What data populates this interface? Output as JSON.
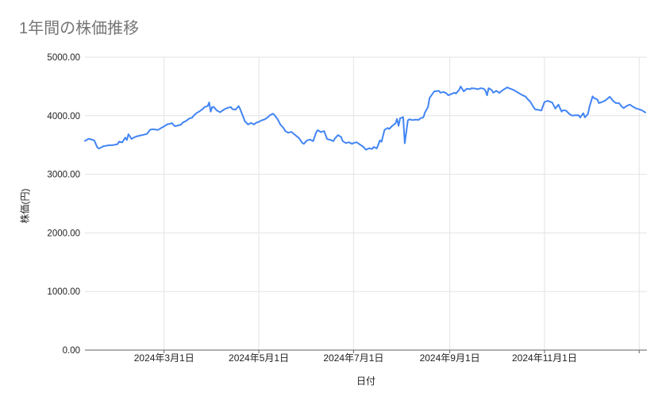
{
  "page": {
    "background": "#ffffff"
  },
  "chart_data": {
    "type": "line",
    "title": "1年間の株価推移",
    "xlabel": "日付",
    "ylabel": "株価(円)",
    "legend": "none",
    "grid": "on",
    "colors": {
      "series": "#4285f4",
      "grid": "#e3e3e3",
      "axis_line": "#616161",
      "title_text": "#757575",
      "label_text": "#222222",
      "background": "#ffffff"
    },
    "ylim": [
      0,
      5000
    ],
    "y_ticks": [
      {
        "value": 0,
        "label": "0.00"
      },
      {
        "value": 1000,
        "label": "1000.00"
      },
      {
        "value": 2000,
        "label": "2000.00"
      },
      {
        "value": 3000,
        "label": "3000.00"
      },
      {
        "value": 4000,
        "label": "4000.00"
      },
      {
        "value": 5000,
        "label": "5000.00"
      }
    ],
    "x_unit": "days_since_start",
    "start_date": "2024-01-10",
    "x_domain_days": [
      0,
      362
    ],
    "x_ticks": [
      {
        "day": 51,
        "label": "2024年3月1日"
      },
      {
        "day": 112,
        "label": "2024年5月1日"
      },
      {
        "day": 173,
        "label": "2024年7月1日"
      },
      {
        "day": 235,
        "label": "2024年9月1日"
      },
      {
        "day": 296,
        "label": "2024年11月1日"
      },
      {
        "day": 357,
        "label": ""
      }
    ],
    "points": [
      [
        0,
        3570
      ],
      [
        2,
        3600
      ],
      [
        3,
        3605
      ],
      [
        6,
        3580
      ],
      [
        8,
        3460
      ],
      [
        9,
        3440
      ],
      [
        12,
        3480
      ],
      [
        15,
        3495
      ],
      [
        18,
        3498
      ],
      [
        21,
        3515
      ],
      [
        22,
        3558
      ],
      [
        24,
        3545
      ],
      [
        26,
        3628
      ],
      [
        27,
        3585
      ],
      [
        28,
        3684
      ],
      [
        30,
        3605
      ],
      [
        31,
        3620
      ],
      [
        33,
        3645
      ],
      [
        36,
        3665
      ],
      [
        38,
        3676
      ],
      [
        40,
        3690
      ],
      [
        42,
        3762
      ],
      [
        44,
        3770
      ],
      [
        47,
        3758
      ],
      [
        49,
        3788
      ],
      [
        51,
        3818
      ],
      [
        53,
        3853
      ],
      [
        55,
        3864
      ],
      [
        56,
        3876
      ],
      [
        58,
        3820
      ],
      [
        60,
        3835
      ],
      [
        62,
        3849
      ],
      [
        63,
        3885
      ],
      [
        65,
        3908
      ],
      [
        67,
        3949
      ],
      [
        69,
        3968
      ],
      [
        70,
        4000
      ],
      [
        72,
        4048
      ],
      [
        74,
        4078
      ],
      [
        76,
        4118
      ],
      [
        77,
        4149
      ],
      [
        79,
        4163
      ],
      [
        80,
        4228
      ],
      [
        81,
        4070
      ],
      [
        82,
        4150
      ],
      [
        83,
        4149
      ],
      [
        85,
        4090
      ],
      [
        87,
        4060
      ],
      [
        88,
        4078
      ],
      [
        90,
        4113
      ],
      [
        92,
        4136
      ],
      [
        94,
        4149
      ],
      [
        95,
        4113
      ],
      [
        97,
        4104
      ],
      [
        99,
        4165
      ],
      [
        100,
        4113
      ],
      [
        101,
        4045
      ],
      [
        102,
        3977
      ],
      [
        103,
        3908
      ],
      [
        105,
        3851
      ],
      [
        107,
        3877
      ],
      [
        109,
        3851
      ],
      [
        110,
        3877
      ],
      [
        112,
        3896
      ],
      [
        114,
        3923
      ],
      [
        116,
        3941
      ],
      [
        118,
        3980
      ],
      [
        119,
        4005
      ],
      [
        121,
        4035
      ],
      [
        122,
        4015
      ],
      [
        124,
        3945
      ],
      [
        126,
        3845
      ],
      [
        128,
        3788
      ],
      [
        129,
        3740
      ],
      [
        131,
        3710
      ],
      [
        133,
        3725
      ],
      [
        135,
        3680
      ],
      [
        138,
        3615
      ],
      [
        140,
        3535
      ],
      [
        141,
        3520
      ],
      [
        143,
        3580
      ],
      [
        145,
        3593
      ],
      [
        147,
        3566
      ],
      [
        149,
        3720
      ],
      [
        150,
        3755
      ],
      [
        152,
        3720
      ],
      [
        154,
        3740
      ],
      [
        156,
        3602
      ],
      [
        158,
        3590
      ],
      [
        160,
        3566
      ],
      [
        161,
        3611
      ],
      [
        163,
        3670
      ],
      [
        165,
        3638
      ],
      [
        166,
        3566
      ],
      [
        168,
        3534
      ],
      [
        170,
        3548
      ],
      [
        172,
        3521
      ],
      [
        173,
        3534
      ],
      [
        175,
        3548
      ],
      [
        177,
        3511
      ],
      [
        179,
        3475
      ],
      [
        181,
        3420
      ],
      [
        183,
        3445
      ],
      [
        185,
        3434
      ],
      [
        186,
        3466
      ],
      [
        188,
        3443
      ],
      [
        190,
        3579
      ],
      [
        191,
        3556
      ],
      [
        193,
        3760
      ],
      [
        195,
        3792
      ],
      [
        196,
        3774
      ],
      [
        198,
        3828
      ],
      [
        200,
        3870
      ],
      [
        201,
        3946
      ],
      [
        202,
        3828
      ],
      [
        203,
        3955
      ],
      [
        205,
        3977
      ],
      [
        206,
        3530
      ],
      [
        208,
        3920
      ],
      [
        209,
        3941
      ],
      [
        211,
        3925
      ],
      [
        213,
        3935
      ],
      [
        215,
        3930
      ],
      [
        216,
        3955
      ],
      [
        218,
        3973
      ],
      [
        219,
        4054
      ],
      [
        221,
        4150
      ],
      [
        222,
        4303
      ],
      [
        224,
        4380
      ],
      [
        225,
        4416
      ],
      [
        228,
        4425
      ],
      [
        229,
        4393
      ],
      [
        231,
        4407
      ],
      [
        233,
        4380
      ],
      [
        234,
        4348
      ],
      [
        236,
        4371
      ],
      [
        238,
        4393
      ],
      [
        239,
        4380
      ],
      [
        241,
        4439
      ],
      [
        242,
        4500
      ],
      [
        244,
        4416
      ],
      [
        246,
        4461
      ],
      [
        248,
        4452
      ],
      [
        249,
        4470
      ],
      [
        252,
        4461
      ],
      [
        253,
        4452
      ],
      [
        255,
        4470
      ],
      [
        257,
        4461
      ],
      [
        258,
        4425
      ],
      [
        259,
        4348
      ],
      [
        260,
        4470
      ],
      [
        262,
        4439
      ],
      [
        263,
        4393
      ],
      [
        265,
        4425
      ],
      [
        267,
        4390
      ],
      [
        268,
        4416
      ],
      [
        270,
        4452
      ],
      [
        272,
        4484
      ],
      [
        274,
        4461
      ],
      [
        275,
        4452
      ],
      [
        277,
        4425
      ],
      [
        279,
        4393
      ],
      [
        280,
        4380
      ],
      [
        282,
        4348
      ],
      [
        284,
        4325
      ],
      [
        285,
        4289
      ],
      [
        287,
        4235
      ],
      [
        289,
        4145
      ],
      [
        290,
        4109
      ],
      [
        292,
        4100
      ],
      [
        294,
        4090
      ],
      [
        296,
        4235
      ],
      [
        298,
        4255
      ],
      [
        299,
        4245
      ],
      [
        301,
        4225
      ],
      [
        303,
        4122
      ],
      [
        305,
        4190
      ],
      [
        307,
        4070
      ],
      [
        308,
        4095
      ],
      [
        310,
        4085
      ],
      [
        312,
        4030
      ],
      [
        314,
        4000
      ],
      [
        315,
        4007
      ],
      [
        318,
        4010
      ],
      [
        319,
        3970
      ],
      [
        321,
        4043
      ],
      [
        322,
        3973
      ],
      [
        324,
        4030
      ],
      [
        325,
        4150
      ],
      [
        327,
        4330
      ],
      [
        328,
        4300
      ],
      [
        330,
        4280
      ],
      [
        331,
        4215
      ],
      [
        333,
        4235
      ],
      [
        335,
        4257
      ],
      [
        337,
        4300
      ],
      [
        338,
        4325
      ],
      [
        340,
        4257
      ],
      [
        342,
        4215
      ],
      [
        344,
        4215
      ],
      [
        346,
        4150
      ],
      [
        347,
        4130
      ],
      [
        349,
        4170
      ],
      [
        351,
        4190
      ],
      [
        353,
        4155
      ],
      [
        355,
        4124
      ],
      [
        357,
        4110
      ],
      [
        359,
        4090
      ],
      [
        361,
        4055
      ]
    ]
  }
}
